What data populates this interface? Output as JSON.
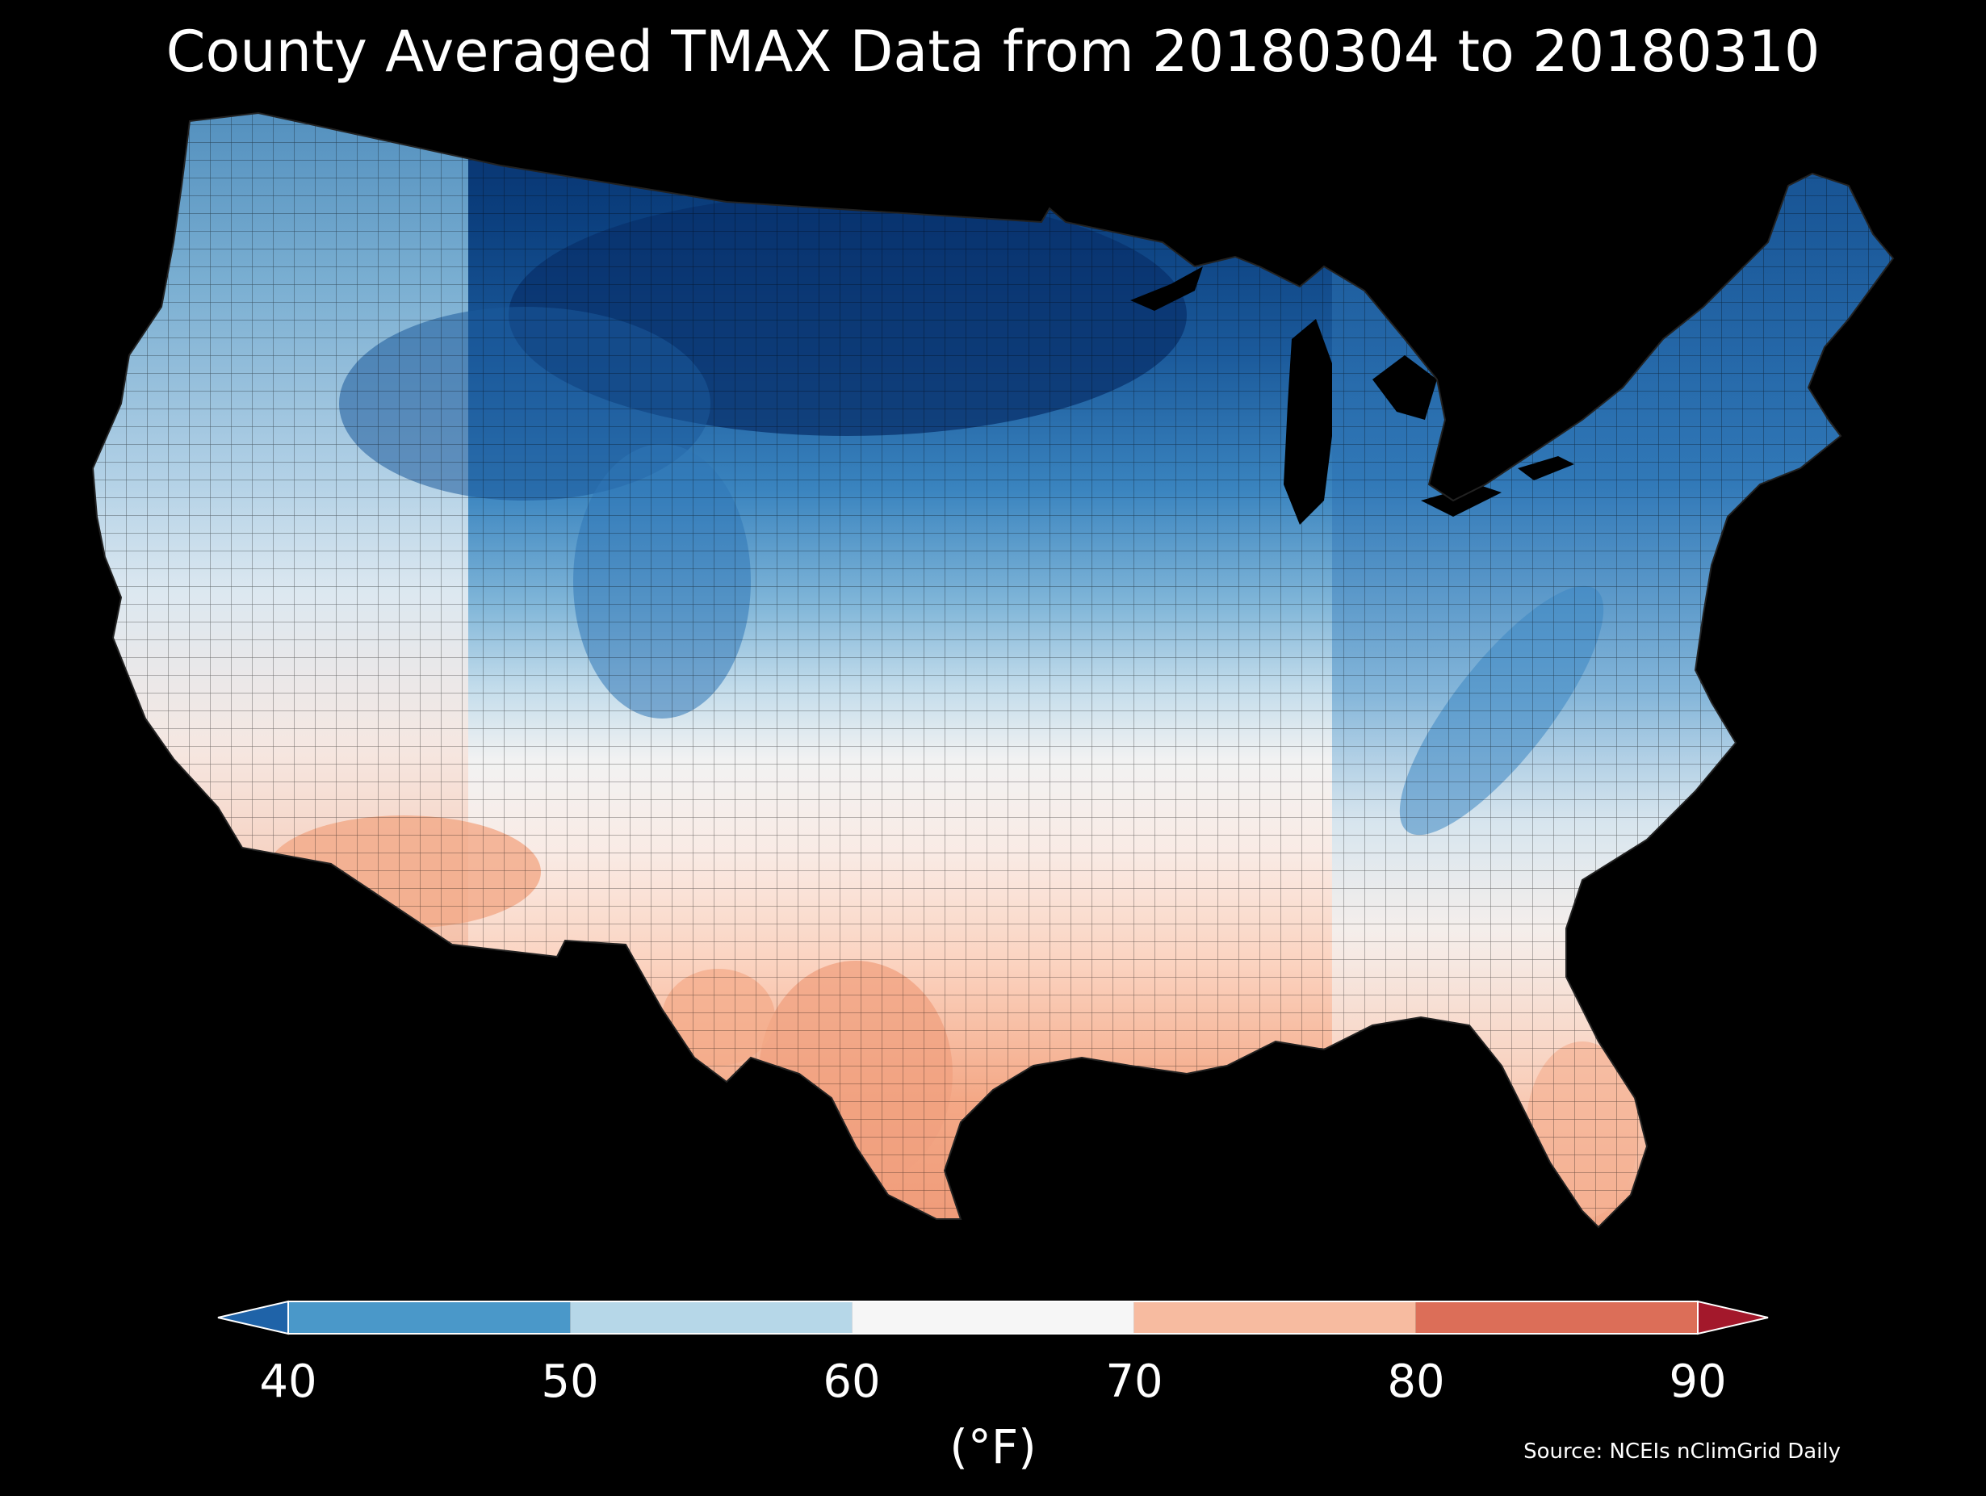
{
  "title": "County Averaged TMAX Data from 20180304 to 20180310",
  "map": {
    "region": "contiguous United States",
    "unit": "county",
    "background": "#000000",
    "border_color": "#1a1a1a",
    "regional_values": [
      {
        "region": "Northern Plains (ND, MN, northern SD/MT)",
        "approx_value": 30
      },
      {
        "region": "Upper Midwest / Great Lakes",
        "approx_value": 37
      },
      {
        "region": "New England / Maine",
        "approx_value": 38
      },
      {
        "region": "Pacific Northwest",
        "approx_value": 50
      },
      {
        "region": "Rocky Mountains / Wyoming / Colorado",
        "approx_value": 42
      },
      {
        "region": "Central Plains (NE, KS)",
        "approx_value": 55
      },
      {
        "region": "Mid-Atlantic / Appalachians",
        "approx_value": 48
      },
      {
        "region": "Southeast interior",
        "approx_value": 62
      },
      {
        "region": "California coast",
        "approx_value": 62
      },
      {
        "region": "Arizona / southern Nevada",
        "approx_value": 72
      },
      {
        "region": "South Texas / Rio Grande",
        "approx_value": 76
      },
      {
        "region": "Gulf Coast",
        "approx_value": 68
      },
      {
        "region": "Florida peninsula",
        "approx_value": 74
      }
    ]
  },
  "colorbar": {
    "ticks": [
      "40",
      "50",
      "60",
      "70",
      "80",
      "90"
    ],
    "units_label": "(°F)",
    "extend": "both",
    "segments": [
      {
        "from": 40,
        "to": 50,
        "color": "#4a98c9"
      },
      {
        "from": 50,
        "to": 60,
        "color": "#b6d7e8"
      },
      {
        "from": 60,
        "to": 70,
        "color": "#f6f6f6"
      },
      {
        "from": 70,
        "to": 80,
        "color": "#f7bba0"
      },
      {
        "from": 80,
        "to": 90,
        "color": "#dc6e58"
      }
    ],
    "under_color": "#1f63a8",
    "over_color": "#a3182b"
  },
  "source": "Source: NCEIs nClimGrid Daily"
}
